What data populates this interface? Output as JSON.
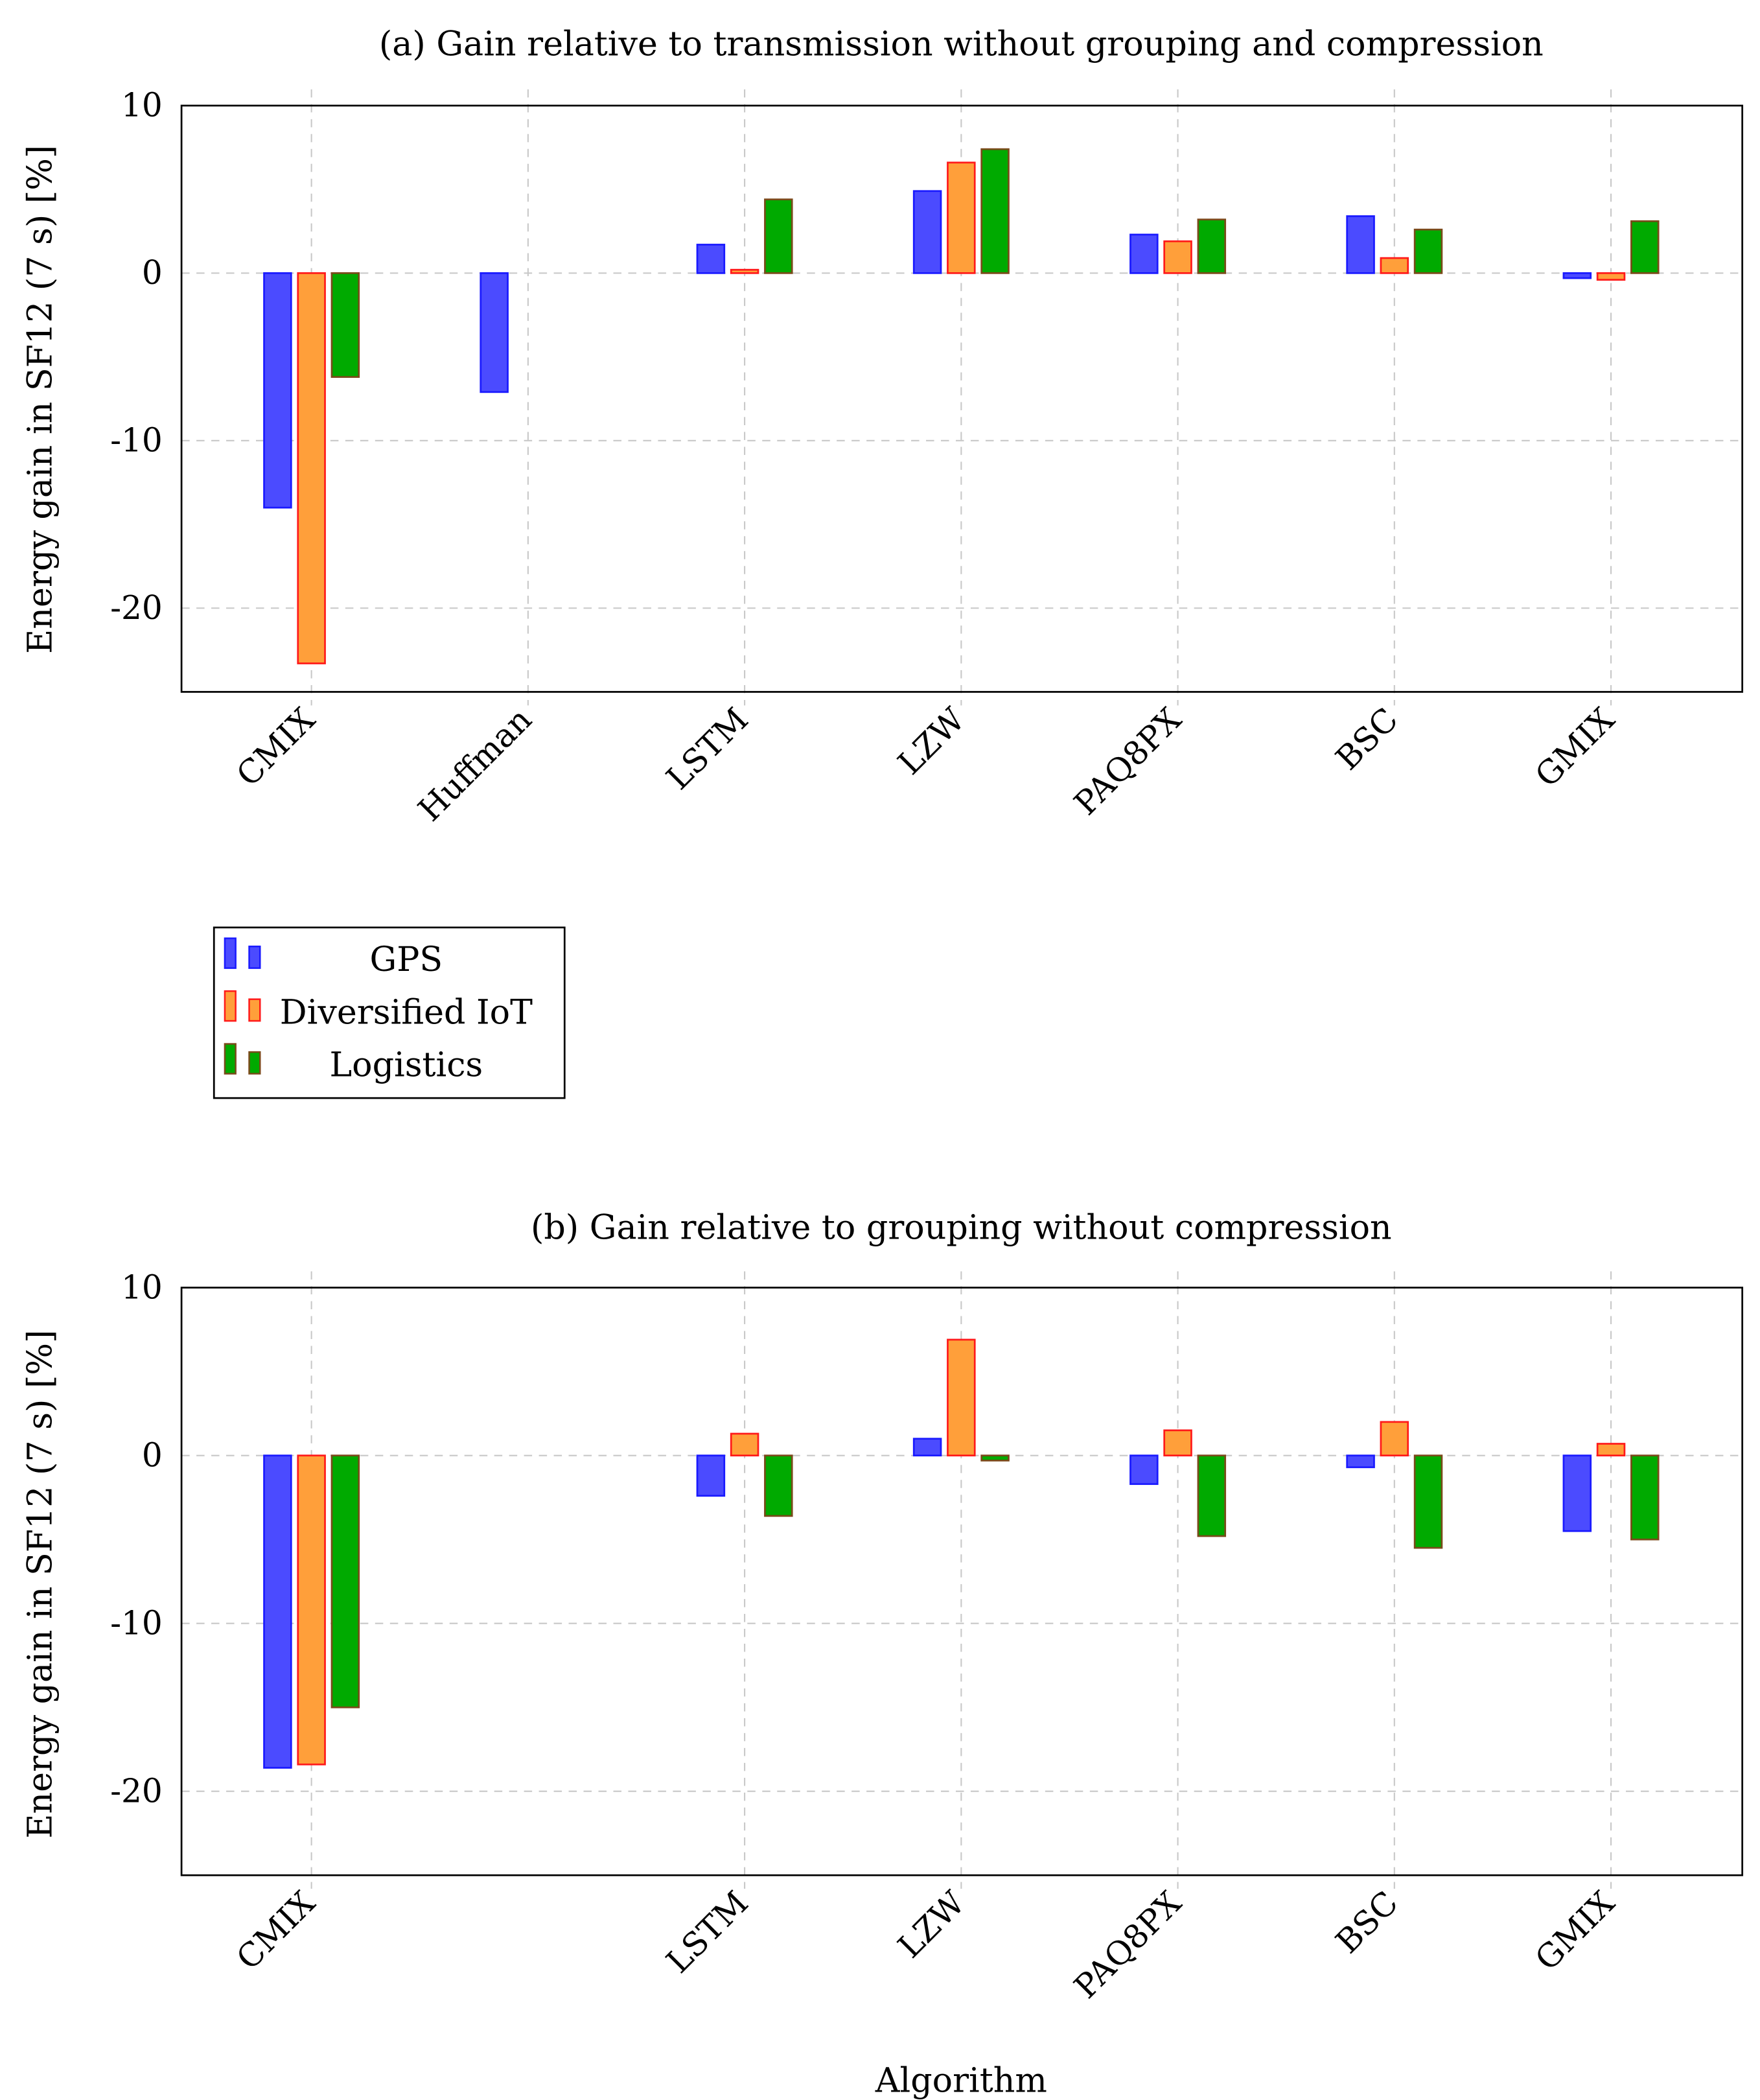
{
  "legend": [
    {
      "name": "GPS",
      "fill": "#4b4bff",
      "stroke": "#1a1aff"
    },
    {
      "name": "Diversified IoT",
      "fill": "#ff9f3a",
      "stroke": "#ff1a1a"
    },
    {
      "name": "Logistics",
      "fill": "#00aa00",
      "stroke": "#7a4a1a"
    }
  ],
  "chart_data": [
    {
      "type": "bar",
      "title": "(a) Gain relative to transmission without grouping and compression",
      "xlabel": "",
      "ylabel": "Energy gain in SF12 (7 s) [%]",
      "ylim": [
        -25,
        10
      ],
      "yticks": [
        10,
        0,
        -10,
        -20
      ],
      "yticklabels": [
        "10",
        "0",
        "−10",
        "−20"
      ],
      "grid": true,
      "legend_position": "below",
      "categories": [
        "CMIX",
        "Huffman",
        "LSTM",
        "LZW",
        "PAQ8PX",
        "BSC",
        "GMIX"
      ],
      "category_index": [
        0,
        1,
        2,
        3,
        4,
        5,
        6
      ],
      "series": [
        {
          "name": "GPS",
          "values": [
            -14.0,
            -7.1,
            1.7,
            4.9,
            2.3,
            3.4,
            -0.3
          ]
        },
        {
          "name": "Diversified IoT",
          "values": [
            -23.3,
            null,
            0.2,
            6.6,
            1.9,
            0.9,
            -0.4
          ]
        },
        {
          "name": "Logistics",
          "values": [
            -6.2,
            null,
            4.4,
            7.4,
            3.2,
            2.6,
            3.1
          ]
        }
      ]
    },
    {
      "type": "bar",
      "title": "(b) Gain relative to grouping without compression",
      "xlabel": "Algorithm",
      "ylabel": "Energy gain in SF12 (7 s) [%]",
      "ylim": [
        -25,
        10
      ],
      "yticks": [
        10,
        0,
        -10,
        -20
      ],
      "yticklabels": [
        "10",
        "0",
        "−10",
        "−20"
      ],
      "grid": true,
      "categories": [
        "CMIX",
        "LSTM",
        "LZW",
        "PAQ8PX",
        "BSC",
        "GMIX"
      ],
      "category_index": [
        0,
        2,
        3,
        4,
        5,
        6
      ],
      "series": [
        {
          "name": "GPS",
          "values": [
            -18.6,
            -2.4,
            1.0,
            -1.7,
            -0.7,
            -4.5
          ]
        },
        {
          "name": "Diversified IoT",
          "values": [
            -18.4,
            1.3,
            6.9,
            1.5,
            2.0,
            0.7
          ]
        },
        {
          "name": "Logistics",
          "values": [
            -15.0,
            -3.6,
            -0.3,
            -4.8,
            -5.5,
            -5.0
          ]
        }
      ]
    }
  ]
}
